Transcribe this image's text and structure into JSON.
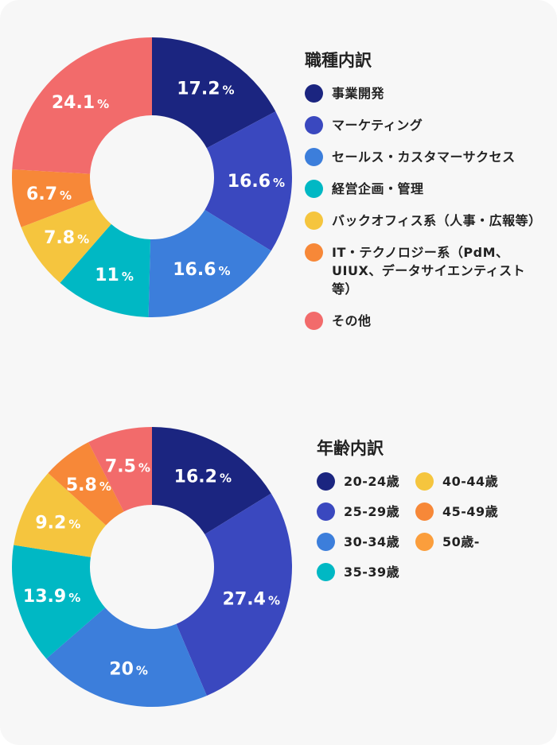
{
  "chart_data": [
    {
      "type": "pie",
      "donut": true,
      "title": "職種内訳",
      "categories": [
        "事業開発",
        "マーケティング",
        "セールス・カスタマーサクセス",
        "経営企画・管理",
        "バックオフィス系（人事・広報等）",
        "IT・テクノロジー系（PdM、UIUX、データサイエンティスト等）",
        "その他"
      ],
      "values": [
        17.2,
        16.6,
        16.6,
        11,
        7.8,
        6.7,
        24.1
      ],
      "labels": [
        "17.2",
        "16.6",
        "16.6",
        "11",
        "7.8",
        "6.7",
        "24.1"
      ],
      "unit": "%",
      "colors": [
        "#1b2580",
        "#3a48bf",
        "#3c7edb",
        "#00b8c4",
        "#f5c53e",
        "#f78838",
        "#f26b6b"
      ],
      "legend_colors": [
        "#1b2580",
        "#3a48bf",
        "#3c7edb",
        "#00b8c4",
        "#f5c53e",
        "#f78838",
        "#f26b6b"
      ],
      "legend": "right"
    },
    {
      "type": "pie",
      "donut": true,
      "title": "年齢内訳",
      "categories": [
        "20-24歳",
        "25-29歳",
        "30-34歳",
        "35-39歳",
        "40-44歳",
        "45-49歳",
        "50歳-"
      ],
      "values": [
        16.2,
        27.4,
        20,
        13.9,
        9.2,
        5.8,
        7.5
      ],
      "labels": [
        "16.2",
        "27.4",
        "20",
        "13.9",
        "9.2",
        "5.8",
        "7.5"
      ],
      "unit": "%",
      "colors": [
        "#1b2580",
        "#3a48bf",
        "#3c7edb",
        "#00b8c4",
        "#f5c53e",
        "#f78838",
        "#f26b6b"
      ],
      "legend_colors": [
        "#1b2580",
        "#3a48bf",
        "#3c7edb",
        "#00b8c4",
        "#f5c53e",
        "#f78838",
        "#fb9e3c"
      ],
      "legend": "right"
    }
  ]
}
